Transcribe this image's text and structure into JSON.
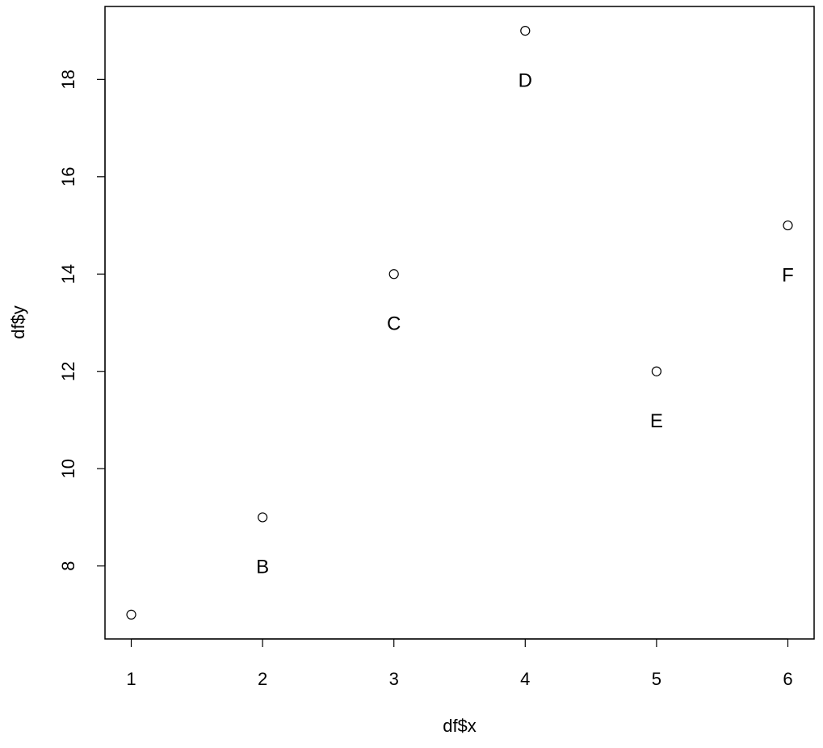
{
  "chart_data": {
    "type": "scatter",
    "xlabel": "df$x",
    "ylabel": "df$y",
    "xlim": [
      0.8,
      6.2
    ],
    "ylim": [
      6.5,
      19.5
    ],
    "xticks": [
      1,
      2,
      3,
      4,
      5,
      6
    ],
    "yticks": [
      8,
      10,
      12,
      14,
      16,
      18
    ],
    "grid": false,
    "points": [
      {
        "x": 1,
        "y": 7,
        "label": ""
      },
      {
        "x": 2,
        "y": 9,
        "label": "B"
      },
      {
        "x": 3,
        "y": 14,
        "label": "C"
      },
      {
        "x": 4,
        "y": 19,
        "label": "D"
      },
      {
        "x": 5,
        "y": 12,
        "label": "E"
      },
      {
        "x": 6,
        "y": 15,
        "label": "F"
      }
    ],
    "point_label_position": "below",
    "colors": {
      "points": "#000000",
      "text": "#000000",
      "frame": "#000000"
    }
  }
}
